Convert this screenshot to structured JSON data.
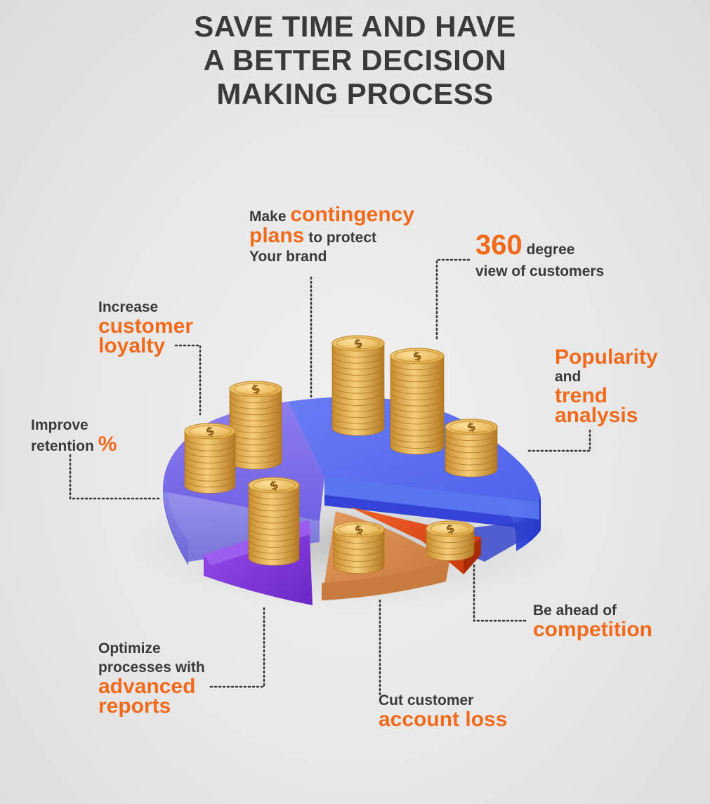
{
  "title": {
    "line1": "SAVE TIME AND HAVE",
    "line2": "A BETTER DECISION",
    "line3": "MAKING PROCESS"
  },
  "labels": {
    "contingency": {
      "pre": "Make",
      "hl1": "contingency",
      "hl2": "plans",
      "mid": "to protect",
      "post": "Your brand"
    },
    "view360": {
      "hl": "360",
      "mid": "degree",
      "post": "view of customers"
    },
    "loyalty": {
      "pre": "Increase",
      "hl1": "customer",
      "hl2": "loyalty"
    },
    "popularity": {
      "hl1": "Popularity",
      "mid": "and",
      "hl2": "trend",
      "hl3": "analysis"
    },
    "retention": {
      "pre": "Improve",
      "mid": "retention",
      "hl": "%"
    },
    "competition": {
      "pre": "Be ahead of",
      "hl": "competition"
    },
    "optimize": {
      "pre1": "Optimize",
      "pre2": "processes with",
      "hl1": "advanced",
      "hl2": "reports"
    },
    "account": {
      "pre": "Cut customer",
      "hl": "account loss"
    }
  },
  "colors": {
    "accent": "#f26b1d",
    "text": "#3a3a3a",
    "slice_blue": "#5b6ff0",
    "slice_periwinkle": "#7868e6",
    "slice_violet": "#8a3fe0",
    "slice_tan": "#d98c52",
    "slice_orange": "#e8531b",
    "coin": "#f0c060"
  },
  "icons": [
    "dollar-coin-stack-icon"
  ]
}
